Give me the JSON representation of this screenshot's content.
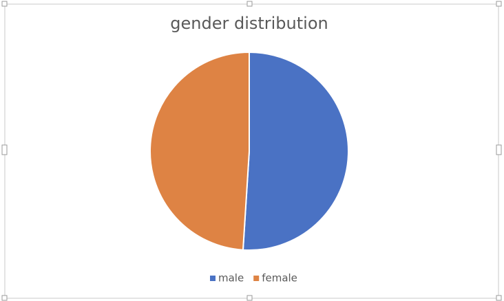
{
  "chart_data": {
    "type": "pie",
    "title": "gender distribution",
    "categories": [
      "male",
      "female"
    ],
    "values": [
      51,
      49
    ],
    "colors": [
      "#4a72c4",
      "#de8344"
    ],
    "legend": "bottom"
  }
}
